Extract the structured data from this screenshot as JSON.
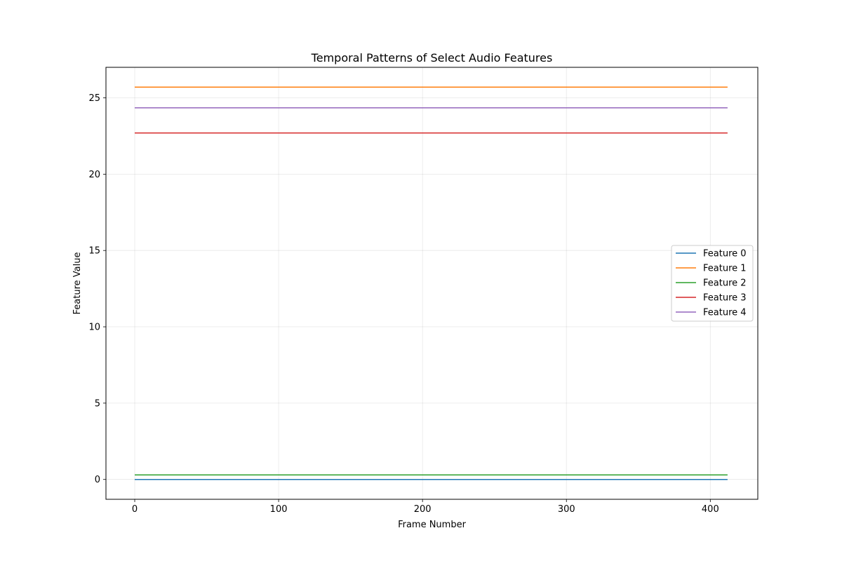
{
  "chart_data": {
    "type": "line",
    "title": "Temporal Patterns of Select Audio Features",
    "xlabel": "Frame Number",
    "ylabel": "Feature Value",
    "xlim": [
      -20,
      433
    ],
    "ylim": [
      -1.3,
      27
    ],
    "xticks": [
      0,
      100,
      200,
      300,
      400
    ],
    "yticks": [
      0,
      5,
      10,
      15,
      20,
      25
    ],
    "grid": true,
    "legend_position": "center-right",
    "x": [
      0,
      412
    ],
    "series": [
      {
        "name": "Feature 0",
        "color": "#1f77b4",
        "values": [
          0.0,
          0.0
        ]
      },
      {
        "name": "Feature 1",
        "color": "#ff7f0e",
        "values": [
          25.7,
          25.7
        ]
      },
      {
        "name": "Feature 2",
        "color": "#2ca02c",
        "values": [
          0.3,
          0.3
        ]
      },
      {
        "name": "Feature 3",
        "color": "#d62728",
        "values": [
          22.7,
          22.7
        ]
      },
      {
        "name": "Feature 4",
        "color": "#9467bd",
        "values": [
          24.35,
          24.35
        ]
      }
    ]
  }
}
